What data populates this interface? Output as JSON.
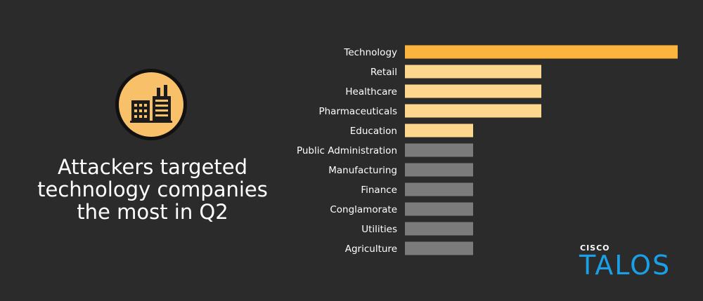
{
  "headline": {
    "line1": "Attackers targeted",
    "line2": "technology companies",
    "line3": "the most in Q2"
  },
  "icon": {
    "name": "factory-buildings-icon",
    "badge_color": "#f9c06a"
  },
  "logo": {
    "brand_small": "CISCO",
    "brand_large": "TALOS",
    "color": "#1aa0e6"
  },
  "colors": {
    "background": "#2b2b2c",
    "top_bar": "#fbb43e",
    "highlight_bars": "#fdd78e",
    "other_bars": "#7b7b7c"
  },
  "chart_data": {
    "type": "bar",
    "orientation": "horizontal",
    "title": "",
    "xlabel": "",
    "ylabel": "",
    "grid": false,
    "value_labels_shown": false,
    "categories": [
      "Technology",
      "Retail",
      "Healthcare",
      "Pharmaceuticals",
      "Education",
      "Public Administration",
      "Manufacturing",
      "Finance",
      "Conglamorate",
      "Utilities",
      "Agriculture"
    ],
    "values": [
      4,
      2,
      2,
      2,
      1,
      1,
      1,
      1,
      1,
      1,
      1
    ],
    "bar_colors": [
      "#fbb43e",
      "#fdd78e",
      "#fdd78e",
      "#fdd78e",
      "#fdd78e",
      "#7b7b7c",
      "#7b7b7c",
      "#7b7b7c",
      "#7b7b7c",
      "#7b7b7c",
      "#7b7b7c"
    ]
  }
}
